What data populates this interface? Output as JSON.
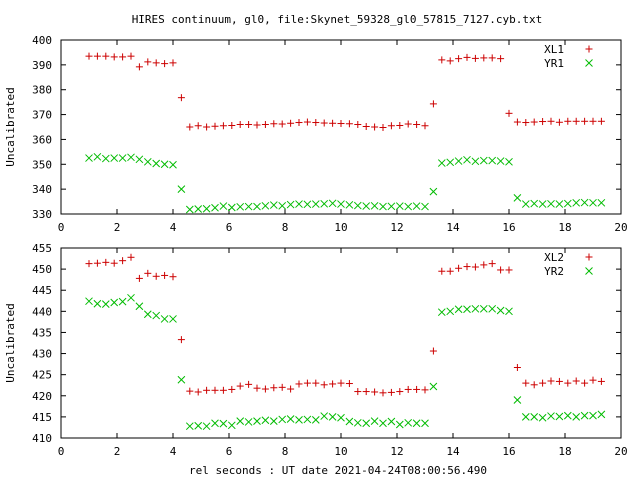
{
  "title": "HIRES continuum, gl0, file:Skynet_59328_gl0_57815_7127.cyb.txt",
  "xlabel": "rel seconds : UT date 2021-04-24T08:00:56.490",
  "colors": {
    "series1": "#cc0000",
    "series2": "#00bb00"
  },
  "chart_data": [
    {
      "type": "scatter",
      "ylabel": "Uncalibrated",
      "xlim": [
        0,
        20
      ],
      "ylim": [
        330,
        400
      ],
      "xticks": [
        0,
        2,
        4,
        6,
        8,
        10,
        12,
        14,
        16,
        18,
        20
      ],
      "yticks": [
        330,
        340,
        350,
        360,
        370,
        380,
        390,
        400
      ],
      "grid": false,
      "legend_position": "top-right",
      "x": [
        1.0,
        1.3,
        1.6,
        1.9,
        2.2,
        2.5,
        2.8,
        3.1,
        3.4,
        3.7,
        4.0,
        4.3,
        4.6,
        4.9,
        5.2,
        5.5,
        5.8,
        6.1,
        6.4,
        6.7,
        7.0,
        7.3,
        7.6,
        7.9,
        8.2,
        8.5,
        8.8,
        9.1,
        9.4,
        9.7,
        10.0,
        10.3,
        10.6,
        10.9,
        11.2,
        11.5,
        11.8,
        12.1,
        12.4,
        12.7,
        13.0,
        13.3,
        13.6,
        13.9,
        14.2,
        14.5,
        14.8,
        15.1,
        15.4,
        15.7,
        16.0,
        16.3,
        16.6,
        16.9,
        17.2,
        17.5,
        17.8,
        18.1,
        18.4,
        18.7,
        19.0,
        19.3
      ],
      "series": [
        {
          "name": "XL1",
          "marker": "plus",
          "values": [
            393.5,
            393.5,
            393.5,
            393.2,
            393.2,
            393.5,
            389.2,
            391.2,
            390.8,
            390.5,
            390.8,
            376.8,
            365.0,
            365.5,
            365.0,
            365.3,
            365.5,
            365.6,
            366.0,
            366.0,
            365.8,
            366.0,
            366.3,
            366.2,
            366.5,
            366.8,
            367.0,
            366.8,
            366.6,
            366.5,
            366.4,
            366.3,
            366.0,
            365.2,
            365.0,
            364.8,
            365.5,
            365.6,
            366.2,
            366.0,
            365.5,
            374.3,
            392.0,
            391.6,
            392.5,
            393.0,
            392.6,
            392.8,
            392.8,
            392.5,
            370.5,
            367.0,
            366.8,
            367.0,
            367.2,
            367.3,
            366.9,
            367.3,
            367.3,
            367.3,
            367.3,
            367.3
          ]
        },
        {
          "name": "YR1",
          "marker": "cross",
          "values": [
            352.5,
            353.0,
            352.3,
            352.5,
            352.5,
            352.8,
            352.0,
            351.0,
            350.3,
            350.0,
            349.8,
            340.0,
            331.8,
            332.0,
            332.1,
            332.5,
            333.2,
            332.6,
            332.9,
            333.0,
            333.0,
            333.3,
            333.6,
            333.3,
            333.8,
            334.0,
            333.9,
            334.0,
            334.1,
            334.3,
            334.0,
            333.7,
            333.4,
            333.2,
            333.3,
            333.0,
            333.1,
            333.2,
            333.0,
            333.2,
            333.0,
            339.0,
            350.5,
            350.8,
            351.3,
            351.8,
            351.2,
            351.5,
            351.5,
            351.3,
            351.0,
            336.5,
            334.0,
            334.2,
            334.0,
            334.1,
            334.0,
            334.2,
            334.5,
            334.6,
            334.5,
            334.5
          ]
        }
      ]
    },
    {
      "type": "scatter",
      "ylabel": "Uncalibrated",
      "xlim": [
        0,
        20
      ],
      "ylim": [
        410,
        455
      ],
      "xticks": [
        0,
        2,
        4,
        6,
        8,
        10,
        12,
        14,
        16,
        18,
        20
      ],
      "yticks": [
        410,
        415,
        420,
        425,
        430,
        435,
        440,
        445,
        450,
        455
      ],
      "grid": false,
      "legend_position": "top-right",
      "x": [
        1.0,
        1.3,
        1.6,
        1.9,
        2.2,
        2.5,
        2.8,
        3.1,
        3.4,
        3.7,
        4.0,
        4.3,
        4.6,
        4.9,
        5.2,
        5.5,
        5.8,
        6.1,
        6.4,
        6.7,
        7.0,
        7.3,
        7.6,
        7.9,
        8.2,
        8.5,
        8.8,
        9.1,
        9.4,
        9.7,
        10.0,
        10.3,
        10.6,
        10.9,
        11.2,
        11.5,
        11.8,
        12.1,
        12.4,
        12.7,
        13.0,
        13.3,
        13.6,
        13.9,
        14.2,
        14.5,
        14.8,
        15.1,
        15.4,
        15.7,
        16.0,
        16.3,
        16.6,
        16.9,
        17.2,
        17.5,
        17.8,
        18.1,
        18.4,
        18.7,
        19.0,
        19.3
      ],
      "series": [
        {
          "name": "XL2",
          "marker": "plus",
          "values": [
            451.3,
            451.4,
            451.6,
            451.4,
            452.0,
            452.8,
            447.8,
            449.0,
            448.3,
            448.5,
            448.2,
            433.3,
            421.1,
            420.9,
            421.3,
            421.3,
            421.3,
            421.5,
            422.3,
            422.7,
            421.8,
            421.6,
            421.9,
            422.0,
            421.6,
            422.8,
            423.0,
            423.0,
            422.6,
            422.8,
            423.0,
            422.9,
            421.0,
            421.0,
            420.9,
            420.7,
            420.8,
            421.0,
            421.5,
            421.5,
            421.4,
            430.6,
            449.5,
            449.5,
            450.2,
            450.6,
            450.5,
            451.0,
            451.3,
            449.8,
            449.8,
            426.7,
            423.0,
            422.6,
            423.0,
            423.5,
            423.4,
            423.0,
            423.5,
            423.0,
            423.7,
            423.4
          ]
        },
        {
          "name": "YR2",
          "marker": "cross",
          "values": [
            442.4,
            441.8,
            441.7,
            442.1,
            442.3,
            443.2,
            441.2,
            439.3,
            439.0,
            438.2,
            438.2,
            423.8,
            412.8,
            412.9,
            412.8,
            413.5,
            413.4,
            413.0,
            414.0,
            413.8,
            414.0,
            414.2,
            414.0,
            414.4,
            414.5,
            414.3,
            414.4,
            414.3,
            415.2,
            415.0,
            414.8,
            413.9,
            413.6,
            413.5,
            414.0,
            413.5,
            413.9,
            413.2,
            413.6,
            413.5,
            413.5,
            422.2,
            439.8,
            440.0,
            440.5,
            440.5,
            440.6,
            440.6,
            440.6,
            440.2,
            440.0,
            419.0,
            415.0,
            415.0,
            414.8,
            415.2,
            415.1,
            415.3,
            415.0,
            415.3,
            415.3,
            415.6
          ]
        }
      ]
    }
  ]
}
